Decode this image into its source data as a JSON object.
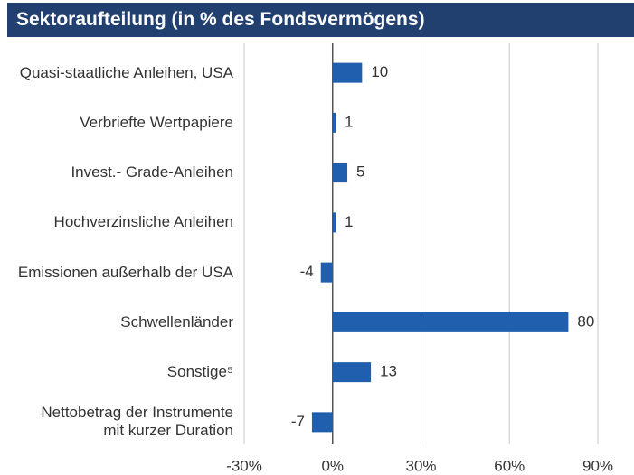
{
  "chart_data": {
    "type": "bar",
    "orientation": "horizontal",
    "title": "Sektoraufteilung (in % des Fondsvermögens)",
    "categories": [
      "Quasi-staatliche Anleihen, USA",
      "Verbriefte Wertpapiere",
      "Invest.- Grade-Anleihen",
      "Hochverzinsliche Anleihen",
      "Emissionen außerhalb der USA",
      "Schwellenländer",
      "Sonstige⁵",
      "Nettobetrag der Instrumente\nmit kurzer Duration"
    ],
    "values": [
      10,
      1,
      5,
      1,
      -4,
      80,
      13,
      -7
    ],
    "color": "#1f5fae",
    "xlim": [
      -30,
      90
    ],
    "xticks": [
      {
        "value": -30,
        "label": "-30%"
      },
      {
        "value": 0,
        "label": "0%"
      },
      {
        "value": 30,
        "label": "30%"
      },
      {
        "value": 60,
        "label": "60%"
      },
      {
        "value": 90,
        "label": "90%"
      }
    ],
    "grid": true
  }
}
